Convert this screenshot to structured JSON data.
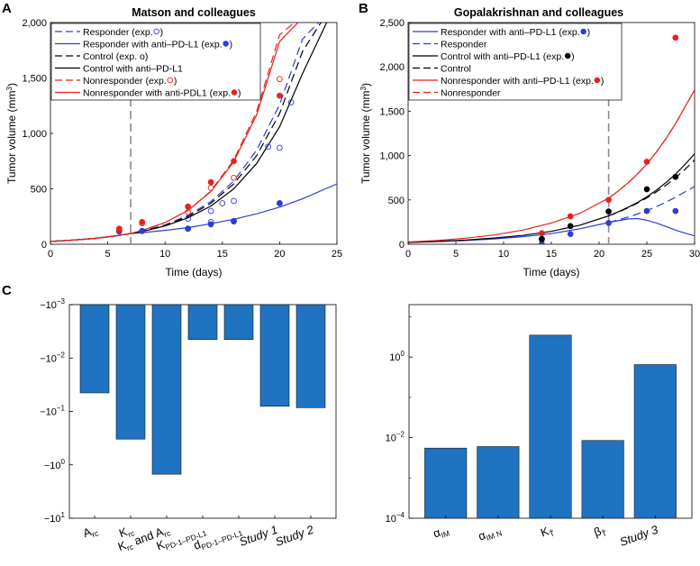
{
  "panel_labels": {
    "a": "A",
    "b": "B",
    "c": "C"
  },
  "chart_data": [
    {
      "id": "A",
      "type": "line",
      "title": "Matson and colleagues",
      "xlabel": "Time (days)",
      "ylabel": "Tumor volume (mm",
      "ylabel_sup": "3",
      "ylabel_close": ")",
      "xlim": [
        0,
        25
      ],
      "ylim": [
        0,
        2000
      ],
      "xticks": [
        0,
        5,
        10,
        15,
        20,
        25
      ],
      "xtick_labels": [
        "0",
        "5",
        "10",
        "15",
        "20",
        "25"
      ],
      "yticks": [
        0,
        500,
        1000,
        1500,
        2000
      ],
      "ytick_labels": [
        "0",
        "500",
        "1,000",
        "1,500",
        "2,000"
      ],
      "vline_x": 7,
      "legend_position": "top-left",
      "legend": [
        {
          "label": "Responder (exp. ",
          "marker": "open-circle",
          "color": "#2b3ed1",
          "dash": true
        },
        {
          "label": "Responder with anti–PD-L1 (exp. ",
          "marker": "filled-circle",
          "color": "#2b3ed1",
          "dash": false
        },
        {
          "label": "Control (exp. o)",
          "marker": "none",
          "color": "#000000",
          "dash": true
        },
        {
          "label": "Control with anti–PD-L1",
          "marker": "none",
          "color": "#000000",
          "dash": false
        },
        {
          "label": "Nonresponder (exp. ",
          "marker": "open-circle",
          "color": "#e8201c",
          "dash": true
        },
        {
          "label": "Nonresponder with anti-PDL1 (exp. ",
          "marker": "filled-circle",
          "color": "#e8201c",
          "dash": false
        }
      ],
      "series": [
        {
          "name": "Responder",
          "color": "#2b3ed1",
          "dash": true,
          "x": [
            0,
            2,
            4,
            6,
            7,
            8,
            10,
            12,
            14,
            16,
            18,
            20,
            22,
            23.4
          ],
          "y": [
            25,
            37,
            54,
            80,
            97,
            118,
            175,
            260,
            385,
            570,
            850,
            1260,
            1850,
            2000
          ]
        },
        {
          "name": "Responder with anti–PD-L1",
          "color": "#2b3ed1",
          "dash": false,
          "x": [
            0,
            2,
            4,
            6,
            7,
            8,
            10,
            12,
            14,
            16,
            18,
            20,
            22,
            24,
            25
          ],
          "y": [
            25,
            37,
            54,
            80,
            97,
            105,
            125,
            150,
            185,
            225,
            275,
            335,
            410,
            500,
            545
          ]
        },
        {
          "name": "Control",
          "color": "#000000",
          "dash": true,
          "x": [
            0,
            2,
            4,
            6,
            7,
            8,
            10,
            12,
            14,
            16,
            18,
            20,
            22,
            23.6
          ],
          "y": [
            25,
            37,
            54,
            80,
            97,
            117,
            170,
            250,
            370,
            545,
            800,
            1180,
            1740,
            2000
          ]
        },
        {
          "name": "Control with anti–PD-L1",
          "color": "#000000",
          "dash": false,
          "x": [
            0,
            2,
            4,
            6,
            7,
            8,
            10,
            12,
            14,
            16,
            18,
            20,
            22,
            24.1
          ],
          "y": [
            25,
            37,
            54,
            80,
            97,
            115,
            165,
            238,
            345,
            500,
            730,
            1060,
            1540,
            2000
          ]
        },
        {
          "name": "Nonresponder",
          "color": "#e8201c",
          "dash": true,
          "x": [
            0,
            2,
            4,
            6,
            7,
            8,
            10,
            12,
            14,
            16,
            18,
            20,
            21.3
          ],
          "y": [
            25,
            37,
            54,
            80,
            97,
            125,
            195,
            305,
            480,
            760,
            1200,
            1890,
            2000
          ]
        },
        {
          "name": "Nonresponder with anti-PDL1",
          "color": "#e8201c",
          "dash": false,
          "x": [
            0,
            2,
            4,
            6,
            7,
            8,
            10,
            12,
            14,
            16,
            18,
            20,
            21.6
          ],
          "y": [
            25,
            37,
            54,
            80,
            97,
            125,
            195,
            305,
            475,
            745,
            1170,
            1830,
            2000
          ]
        }
      ],
      "points": [
        {
          "name": "Responder exp.",
          "fill": "none",
          "color": "#2b3ed1",
          "x": [
            6,
            8,
            12,
            14,
            16,
            20
          ],
          "y": [
            120,
            120,
            140,
            200,
            210,
            370
          ]
        },
        {
          "name": "Responder anti–PD-L1 exp.",
          "fill": "#2b3ed1",
          "color": "#2b3ed1",
          "x": [
            6,
            8,
            12,
            14,
            16,
            20
          ],
          "y": [
            115,
            120,
            140,
            180,
            205,
            370
          ]
        },
        {
          "name": "Control exp.",
          "fill": "none",
          "color": "#2b3ed1",
          "x": [
            12,
            14,
            15,
            16,
            19,
            20,
            21
          ],
          "y": [
            230,
            300,
            370,
            390,
            880,
            870,
            1280
          ]
        },
        {
          "name": "Nonresponder exp.",
          "fill": "none",
          "color": "#e8201c",
          "x": [
            6,
            8,
            12,
            14,
            16,
            20
          ],
          "y": [
            125,
            190,
            290,
            510,
            600,
            1490
          ]
        },
        {
          "name": "Nonresponder anti-PDL1 exp.",
          "fill": "#e8201c",
          "color": "#e8201c",
          "x": [
            6,
            8,
            12,
            14,
            16,
            20
          ],
          "y": [
            140,
            200,
            340,
            560,
            750,
            1340
          ]
        }
      ]
    },
    {
      "id": "B",
      "type": "line",
      "title": "Gopalakrishnan and colleagues",
      "xlabel": "Time (days)",
      "ylabel": "Tumor volume (mm",
      "ylabel_sup": "3",
      "ylabel_close": ")",
      "xlim": [
        0,
        30
      ],
      "ylim": [
        0,
        2500
      ],
      "xticks": [
        0,
        5,
        10,
        15,
        20,
        25,
        30
      ],
      "xtick_labels": [
        "0",
        "5",
        "10",
        "15",
        "20",
        "25",
        "30"
      ],
      "yticks": [
        0,
        500,
        1000,
        1500,
        2000,
        2500
      ],
      "ytick_labels": [
        "0",
        "500",
        "1,000",
        "1,500",
        "2,000",
        "2,500"
      ],
      "vline_x": 21,
      "legend_position": "top-left",
      "legend": [
        {
          "label": "Responder with anti–PD-L1 (exp. ",
          "marker": "filled-circle",
          "color": "#2b3ed1",
          "dash": false
        },
        {
          "label": "Responder",
          "marker": "none",
          "color": "#2b3ed1",
          "dash": true
        },
        {
          "label": "Control with anti–PD-L1 (exp. ",
          "marker": "filled-circle",
          "color": "#000000",
          "dash": false
        },
        {
          "label": "Control",
          "marker": "none",
          "color": "#000000",
          "dash": true
        },
        {
          "label": "Nonresponder with anti–PD-L1 (exp. ",
          "marker": "filled-circle",
          "color": "#e8201c",
          "dash": false
        },
        {
          "label": "Nonresponder",
          "marker": "none",
          "color": "#e8201c",
          "dash": true
        }
      ],
      "series": [
        {
          "name": "Responder with anti–PD-L1",
          "color": "#2b3ed1",
          "dash": false,
          "x": [
            0,
            3,
            6,
            9,
            12,
            15,
            18,
            21,
            22,
            23,
            24,
            25,
            26,
            27,
            28,
            29,
            30
          ],
          "y": [
            20,
            30,
            42,
            60,
            85,
            120,
            175,
            245,
            265,
            285,
            290,
            270,
            240,
            200,
            160,
            125,
            95
          ]
        },
        {
          "name": "Responder",
          "color": "#2b3ed1",
          "dash": true,
          "x": [
            21,
            22,
            23,
            24,
            25,
            26,
            27,
            28,
            29,
            30
          ],
          "y": [
            245,
            275,
            305,
            340,
            380,
            425,
            475,
            530,
            590,
            650
          ]
        },
        {
          "name": "Control with anti–PD-L1",
          "color": "#000000",
          "dash": false,
          "x": [
            0,
            3,
            6,
            9,
            12,
            15,
            18,
            21,
            22,
            23,
            24,
            25,
            26,
            27,
            28,
            29,
            30
          ],
          "y": [
            20,
            32,
            48,
            70,
            100,
            145,
            215,
            320,
            365,
            415,
            470,
            535,
            610,
            695,
            790,
            900,
            1020
          ]
        },
        {
          "name": "Control",
          "color": "#000000",
          "dash": true,
          "x": [
            21,
            22,
            23,
            24,
            25,
            26,
            27,
            28,
            29,
            30
          ],
          "y": [
            320,
            362,
            410,
            462,
            522,
            590,
            665,
            750,
            845,
            950
          ]
        },
        {
          "name": "Nonresponder with anti–PD-L1",
          "color": "#e8201c",
          "dash": false,
          "x": [
            0,
            3,
            6,
            9,
            12,
            15,
            18,
            21,
            22,
            23,
            24,
            25,
            26,
            27,
            28,
            29,
            30
          ],
          "y": [
            25,
            42,
            68,
            105,
            160,
            240,
            350,
            520,
            600,
            690,
            790,
            905,
            1040,
            1190,
            1360,
            1550,
            1740
          ]
        },
        {
          "name": "Nonresponder",
          "color": "#e8201c",
          "dash": true,
          "x": [
            21,
            22,
            23,
            24,
            25,
            26,
            27,
            28,
            29,
            30
          ],
          "y": [
            520,
            600,
            690,
            790,
            905,
            1040,
            1190,
            1360,
            1550,
            1740
          ]
        }
      ],
      "points": [
        {
          "name": "Responder exp.",
          "fill": "#2b3ed1",
          "color": "#2b3ed1",
          "x": [
            14,
            14,
            17,
            21,
            25,
            28
          ],
          "y": [
            5,
            55,
            115,
            240,
            375,
            375
          ]
        },
        {
          "name": "Control exp.",
          "fill": "#000000",
          "color": "#000000",
          "x": [
            14,
            17,
            21,
            25,
            28
          ],
          "y": [
            60,
            205,
            370,
            620,
            760
          ]
        },
        {
          "name": "Nonresponder exp.",
          "fill": "#e8201c",
          "color": "#e8201c",
          "x": [
            14,
            17,
            21,
            25,
            28
          ],
          "y": [
            125,
            315,
            500,
            930,
            2330
          ]
        }
      ]
    },
    {
      "id": "C-left",
      "type": "bar",
      "color": "#1f73c1",
      "categories": [
        "A_rc",
        "K_rc",
        "K_rc and A_rc",
        "K_PD-1–PD-L1",
        "d_PD-1–PD-L1",
        "Study 1",
        "Study 2"
      ],
      "category_labels": [
        {
          "main": "A",
          "sub": "rc",
          "rest": ""
        },
        {
          "main": "K",
          "sub": "rc",
          "rest": ""
        },
        {
          "main": "K",
          "sub": "rc",
          "rest": " and A",
          "sub2": "rc"
        },
        {
          "main": "K",
          "sub": "PD-1–PD-L1",
          "rest": ""
        },
        {
          "main": "d",
          "sub": "PD-1–PD-L1",
          "rest": ""
        },
        {
          "main": "Study 1",
          "sub": "",
          "rest": ""
        },
        {
          "main": "Study 2",
          "sub": "",
          "rest": ""
        }
      ],
      "values": [
        -0.045,
        -0.33,
        -1.5,
        -0.0045,
        -0.0045,
        -0.08,
        -0.085
      ],
      "yscale": "log (negative)",
      "ylim": [
        -10,
        -0.001
      ],
      "yticks": [
        -0.001,
        -0.01,
        -0.1,
        -1,
        -10
      ],
      "ytick_labels": [
        {
          "base": "−10",
          "exp": "−3"
        },
        {
          "base": "−10",
          "exp": "−2"
        },
        {
          "base": "−10",
          "exp": "−1"
        },
        {
          "base": "−10",
          "exp": "0"
        },
        {
          "base": "−10",
          "exp": "1"
        }
      ]
    },
    {
      "id": "C-right",
      "type": "bar",
      "color": "#1f73c1",
      "categories": [
        "alpha_IM",
        "alpha_IM_N",
        "K_T^",
        "beta_T^",
        "Study 3"
      ],
      "category_labels": [
        {
          "main": "α",
          "sub": "IM",
          "rest": ""
        },
        {
          "main": "α",
          "sub": "IM N",
          "rest": ""
        },
        {
          "main": "K",
          "sub": "T̂",
          "rest": ""
        },
        {
          "main": "β",
          "sub": "T̂",
          "rest": ""
        },
        {
          "main": "Study 3",
          "sub": "",
          "rest": ""
        }
      ],
      "values": [
        0.0055,
        0.006,
        3.5,
        0.0085,
        0.65
      ],
      "yscale": "log",
      "ylim": [
        0.0001,
        20
      ],
      "yticks": [
        0.0001,
        0.01,
        1
      ],
      "ytick_labels": [
        {
          "base": "10",
          "exp": "−4"
        },
        {
          "base": "10",
          "exp": "−2"
        },
        {
          "base": "10",
          "exp": "0"
        }
      ]
    }
  ]
}
